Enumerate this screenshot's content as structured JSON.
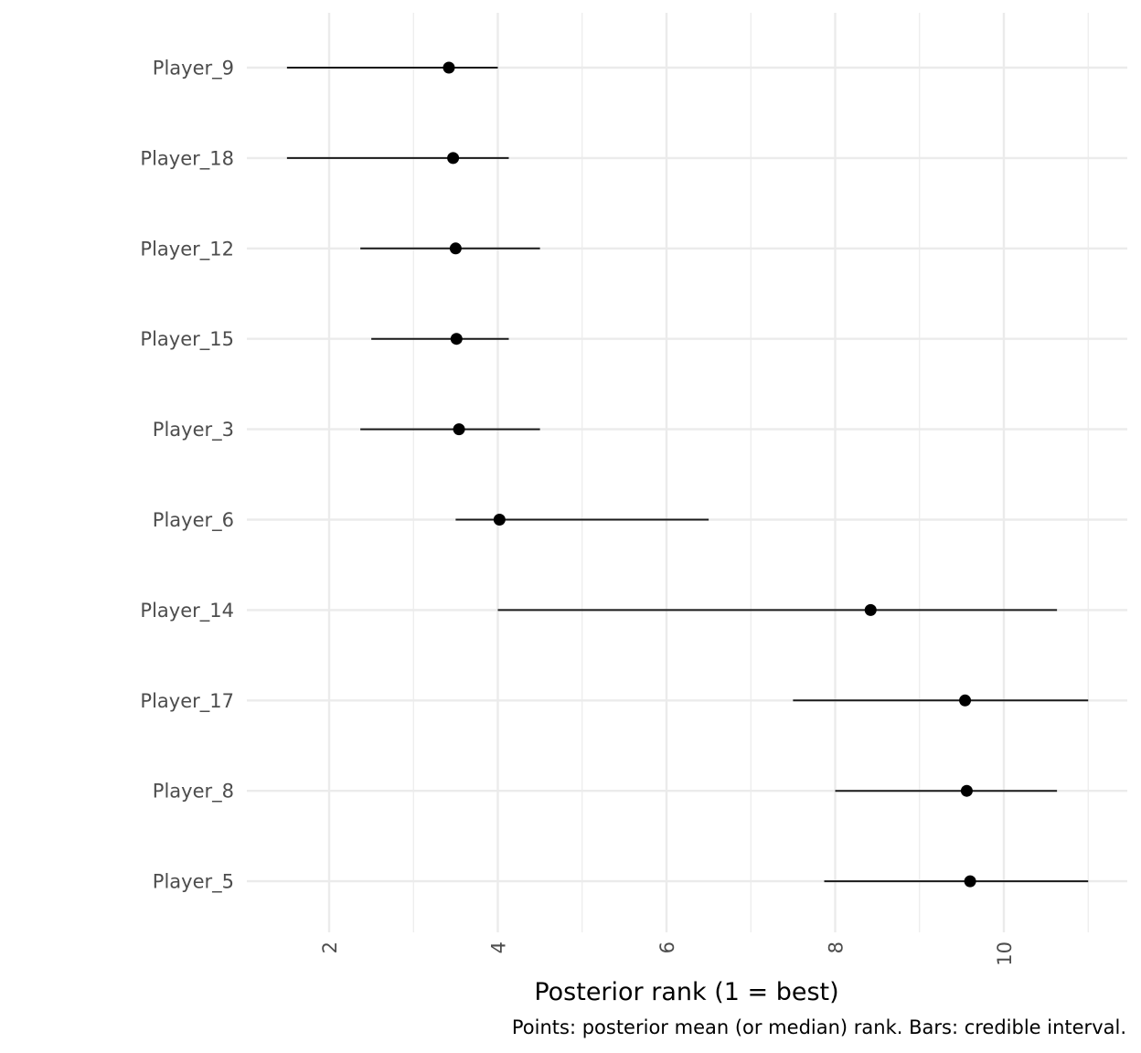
{
  "chart_data": {
    "type": "scatter",
    "subtype": "dot-and-interval",
    "xlabel": "Posterior rank (1 = best)",
    "caption": "Points: posterior mean (or median) rank. Bars: credible interval.",
    "xlim": [
      1.0,
      11.5
    ],
    "xticks": [
      2,
      4,
      6,
      8,
      10
    ],
    "grid": true,
    "players": [
      {
        "name": "Player_9",
        "estimate": 3.42,
        "lower": 1.5,
        "upper": 4.0
      },
      {
        "name": "Player_18",
        "estimate": 3.47,
        "lower": 1.5,
        "upper": 4.13
      },
      {
        "name": "Player_12",
        "estimate": 3.5,
        "lower": 2.37,
        "upper": 4.5
      },
      {
        "name": "Player_15",
        "estimate": 3.51,
        "lower": 2.5,
        "upper": 4.13
      },
      {
        "name": "Player_3",
        "estimate": 3.54,
        "lower": 2.37,
        "upper": 4.5
      },
      {
        "name": "Player_6",
        "estimate": 4.02,
        "lower": 3.5,
        "upper": 6.5
      },
      {
        "name": "Player_14",
        "estimate": 8.42,
        "lower": 4.0,
        "upper": 10.63
      },
      {
        "name": "Player_17",
        "estimate": 9.54,
        "lower": 7.5,
        "upper": 11.0
      },
      {
        "name": "Player_8",
        "estimate": 9.56,
        "lower": 8.0,
        "upper": 10.63
      },
      {
        "name": "Player_5",
        "estimate": 9.6,
        "lower": 7.87,
        "upper": 11.0
      }
    ]
  }
}
